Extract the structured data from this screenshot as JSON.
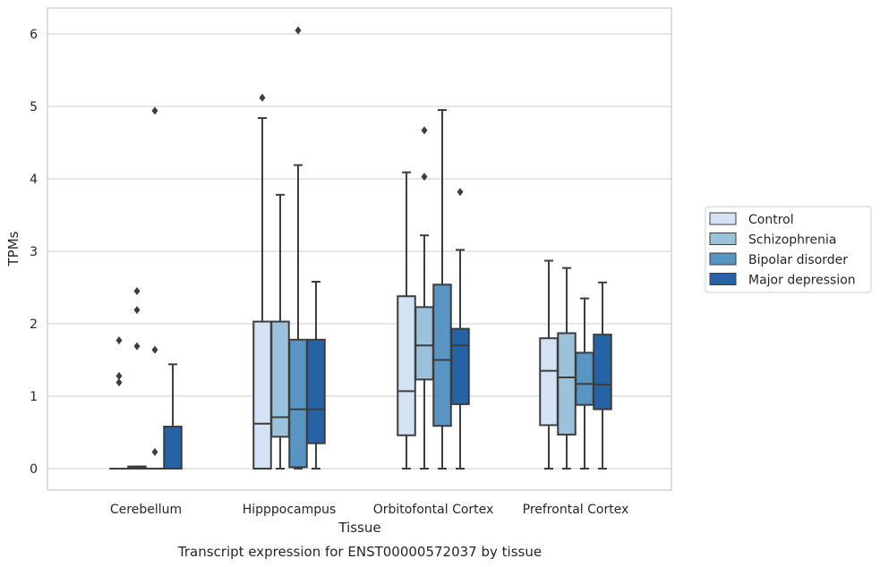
{
  "chart_data": {
    "type": "box",
    "title": "",
    "caption": "Transcript expression for ENST00000572037 by tissue",
    "xlabel": "Tissue",
    "ylabel": "TPMs",
    "ylim": [
      -0.3,
      6.35
    ],
    "yticks": [
      0,
      1,
      2,
      3,
      4,
      5,
      6
    ],
    "grid": "horizontal",
    "legend_position": "right",
    "categories": [
      "Cerebellum",
      "Hipppocampus",
      "Orbitofontal Cortex",
      "Prefrontal Cortex"
    ],
    "series": [
      {
        "name": "Control",
        "color": "#d4e3f3",
        "boxes": [
          {
            "min": 0,
            "q1": 0,
            "median": 0,
            "q3": 0,
            "max": 0,
            "outliers": [
              1.19,
              1.28,
              1.77
            ]
          },
          {
            "min": 0,
            "q1": 0,
            "median": 0.62,
            "q3": 2.03,
            "max": 4.84,
            "outliers": [
              5.12
            ]
          },
          {
            "min": 0,
            "q1": 0.46,
            "median": 1.07,
            "q3": 2.38,
            "max": 4.09,
            "outliers": []
          },
          {
            "min": 0,
            "q1": 0.6,
            "median": 1.35,
            "q3": 1.8,
            "max": 2.87,
            "outliers": []
          }
        ]
      },
      {
        "name": "Schizophrenia",
        "color": "#9cc1da",
        "boxes": [
          {
            "min": 0,
            "q1": 0,
            "median": 0.02,
            "q3": 0.03,
            "max": 0.03,
            "outliers": [
              1.69,
              2.19,
              2.45
            ]
          },
          {
            "min": 0,
            "q1": 0.44,
            "median": 0.71,
            "q3": 2.03,
            "max": 3.78,
            "outliers": []
          },
          {
            "min": 0,
            "q1": 1.23,
            "median": 1.7,
            "q3": 2.23,
            "max": 3.22,
            "outliers": [
              4.03,
              4.67
            ]
          },
          {
            "min": 0,
            "q1": 0.47,
            "median": 1.26,
            "q3": 1.87,
            "max": 2.77,
            "outliers": []
          }
        ]
      },
      {
        "name": "Bipolar disorder",
        "color": "#5895c2",
        "boxes": [
          {
            "min": 0,
            "q1": 0,
            "median": 0,
            "q3": 0,
            "max": 0,
            "outliers": [
              0.23,
              1.64,
              4.94
            ]
          },
          {
            "min": 0,
            "q1": 0.02,
            "median": 0.82,
            "q3": 1.78,
            "max": 4.19,
            "outliers": [
              6.05
            ]
          },
          {
            "min": 0,
            "q1": 0.59,
            "median": 1.5,
            "q3": 2.54,
            "max": 4.95,
            "outliers": []
          },
          {
            "min": 0,
            "q1": 0.88,
            "median": 1.17,
            "q3": 1.6,
            "max": 2.35,
            "outliers": []
          }
        ]
      },
      {
        "name": "Major depression",
        "color": "#2663a6",
        "boxes": [
          {
            "min": 0,
            "q1": 0,
            "median": 0,
            "q3": 0.58,
            "max": 1.44,
            "outliers": []
          },
          {
            "min": 0,
            "q1": 0.35,
            "median": 0.82,
            "q3": 1.78,
            "max": 2.58,
            "outliers": []
          },
          {
            "min": 0,
            "q1": 0.89,
            "median": 1.7,
            "q3": 1.93,
            "max": 3.02,
            "outliers": [
              3.82
            ]
          },
          {
            "min": 0,
            "q1": 0.82,
            "median": 1.16,
            "q3": 1.85,
            "max": 2.57,
            "outliers": []
          }
        ]
      }
    ]
  }
}
